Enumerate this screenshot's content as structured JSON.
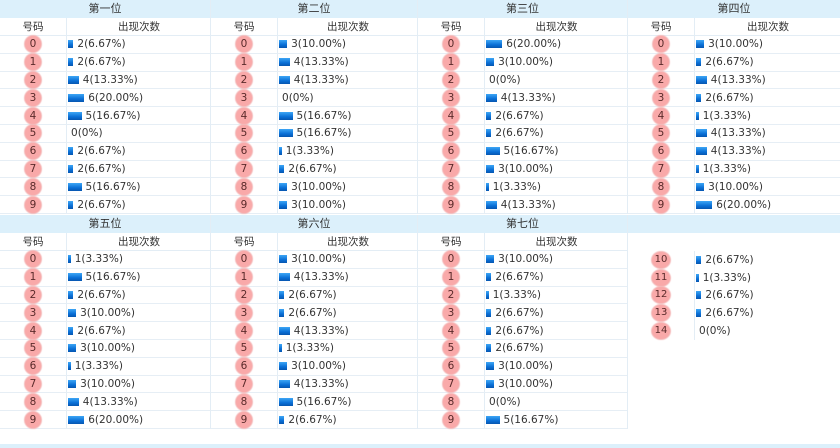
{
  "headers": {
    "number": "号码",
    "count": "出现次数"
  },
  "sections": [
    [
      {
        "title": "第一位",
        "rows": [
          [
            "0",
            2,
            "6.67%"
          ],
          [
            "1",
            2,
            "6.67%"
          ],
          [
            "2",
            4,
            "13.33%"
          ],
          [
            "3",
            6,
            "20.00%"
          ],
          [
            "4",
            5,
            "16.67%"
          ],
          [
            "5",
            0,
            "0%"
          ],
          [
            "6",
            2,
            "6.67%"
          ],
          [
            "7",
            2,
            "6.67%"
          ],
          [
            "8",
            5,
            "16.67%"
          ],
          [
            "9",
            2,
            "6.67%"
          ]
        ]
      },
      {
        "title": "第二位",
        "rows": [
          [
            "0",
            3,
            "10.00%"
          ],
          [
            "1",
            4,
            "13.33%"
          ],
          [
            "2",
            4,
            "13.33%"
          ],
          [
            "3",
            0,
            "0%"
          ],
          [
            "4",
            5,
            "16.67%"
          ],
          [
            "5",
            5,
            "16.67%"
          ],
          [
            "6",
            1,
            "3.33%"
          ],
          [
            "7",
            2,
            "6.67%"
          ],
          [
            "8",
            3,
            "10.00%"
          ],
          [
            "9",
            3,
            "10.00%"
          ]
        ]
      },
      {
        "title": "第三位",
        "rows": [
          [
            "0",
            6,
            "20.00%"
          ],
          [
            "1",
            3,
            "10.00%"
          ],
          [
            "2",
            0,
            "0%"
          ],
          [
            "3",
            4,
            "13.33%"
          ],
          [
            "4",
            2,
            "6.67%"
          ],
          [
            "5",
            2,
            "6.67%"
          ],
          [
            "6",
            5,
            "16.67%"
          ],
          [
            "7",
            3,
            "10.00%"
          ],
          [
            "8",
            1,
            "3.33%"
          ],
          [
            "9",
            4,
            "13.33%"
          ]
        ]
      },
      {
        "title": "第四位",
        "rows": [
          [
            "0",
            3,
            "10.00%"
          ],
          [
            "1",
            2,
            "6.67%"
          ],
          [
            "2",
            4,
            "13.33%"
          ],
          [
            "3",
            2,
            "6.67%"
          ],
          [
            "4",
            1,
            "3.33%"
          ],
          [
            "5",
            4,
            "13.33%"
          ],
          [
            "6",
            4,
            "13.33%"
          ],
          [
            "7",
            1,
            "3.33%"
          ],
          [
            "8",
            3,
            "10.00%"
          ],
          [
            "9",
            6,
            "20.00%"
          ]
        ]
      }
    ],
    [
      {
        "title": "第五位",
        "rows": [
          [
            "0",
            1,
            "3.33%"
          ],
          [
            "1",
            5,
            "16.67%"
          ],
          [
            "2",
            2,
            "6.67%"
          ],
          [
            "3",
            3,
            "10.00%"
          ],
          [
            "4",
            2,
            "6.67%"
          ],
          [
            "5",
            3,
            "10.00%"
          ],
          [
            "6",
            1,
            "3.33%"
          ],
          [
            "7",
            3,
            "10.00%"
          ],
          [
            "8",
            4,
            "13.33%"
          ],
          [
            "9",
            6,
            "20.00%"
          ]
        ]
      },
      {
        "title": "第六位",
        "rows": [
          [
            "0",
            3,
            "10.00%"
          ],
          [
            "1",
            4,
            "13.33%"
          ],
          [
            "2",
            2,
            "6.67%"
          ],
          [
            "3",
            2,
            "6.67%"
          ],
          [
            "4",
            4,
            "13.33%"
          ],
          [
            "5",
            1,
            "3.33%"
          ],
          [
            "6",
            3,
            "10.00%"
          ],
          [
            "7",
            4,
            "13.33%"
          ],
          [
            "8",
            5,
            "16.67%"
          ],
          [
            "9",
            2,
            "6.67%"
          ]
        ]
      },
      {
        "title": "第七位",
        "rows": [
          [
            "0",
            3,
            "10.00%"
          ],
          [
            "1",
            2,
            "6.67%"
          ],
          [
            "2",
            1,
            "3.33%"
          ],
          [
            "3",
            2,
            "6.67%"
          ],
          [
            "4",
            2,
            "6.67%"
          ],
          [
            "5",
            2,
            "6.67%"
          ],
          [
            "6",
            3,
            "10.00%"
          ],
          [
            "7",
            3,
            "10.00%"
          ],
          [
            "8",
            0,
            "0%"
          ],
          [
            "9",
            5,
            "16.67%"
          ]
        ]
      },
      {
        "title": "",
        "noheader": true,
        "rows": [
          [
            "10",
            2,
            "6.67%"
          ],
          [
            "11",
            1,
            "3.33%"
          ],
          [
            "12",
            2,
            "6.67%"
          ],
          [
            "13",
            2,
            "6.67%"
          ],
          [
            "14",
            0,
            "0%"
          ]
        ]
      }
    ]
  ]
}
